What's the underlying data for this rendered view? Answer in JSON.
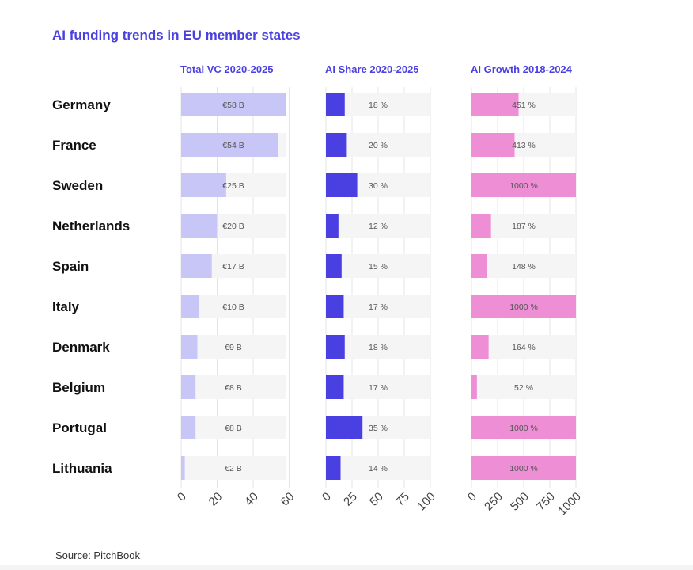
{
  "chart_data": {
    "type": "bar",
    "orientation": "horizontal",
    "title": "AI funding trends in EU member states",
    "source": "Source: PitchBook",
    "categories": [
      "Germany",
      "France",
      "Sweden",
      "Netherlands",
      "Spain",
      "Italy",
      "Denmark",
      "Belgium",
      "Portugal",
      "Lithuania"
    ],
    "panels": [
      {
        "name": "Total VC 2020-2025",
        "values": [
          58,
          54,
          25,
          20,
          17,
          10,
          9,
          8,
          8,
          2
        ],
        "value_labels": [
          "€58 B",
          "€54 B",
          "€25 B",
          "€20 B",
          "€17 B",
          "€10 B",
          "€9 B",
          "€8 B",
          "€8 B",
          "€2 B"
        ],
        "xlim": [
          0,
          58
        ],
        "ticks": [
          0,
          20,
          40,
          60
        ],
        "tick_labels": [
          "0",
          "20",
          "40",
          "60"
        ],
        "color": "#c8c6f7"
      },
      {
        "name": "AI Share 2020-2025",
        "values": [
          18,
          20,
          30,
          12,
          15,
          17,
          18,
          17,
          35,
          14
        ],
        "value_labels": [
          "18 %",
          "20 %",
          "30 %",
          "12 %",
          "15 %",
          "17 %",
          "18 %",
          "17 %",
          "35 %",
          "14 %"
        ],
        "xlim": [
          0,
          100
        ],
        "ticks": [
          0,
          25,
          50,
          75,
          100
        ],
        "tick_labels": [
          "0",
          "25",
          "50",
          "75",
          "100"
        ],
        "color": "#4a3fe0"
      },
      {
        "name": "AI Growth 2018-2024",
        "values": [
          451,
          413,
          1000,
          187,
          148,
          1000,
          164,
          52,
          1000,
          1000
        ],
        "value_labels": [
          "451 %",
          "413 %",
          "1000 %",
          "187 %",
          "148 %",
          "1000 %",
          "164 %",
          "52 %",
          "1000 %",
          "1000 %"
        ],
        "xlim": [
          0,
          1000
        ],
        "ticks": [
          0,
          250,
          500,
          750,
          1000
        ],
        "tick_labels": [
          "0",
          "250",
          "500",
          "750",
          "1000"
        ],
        "color": "#ee8fd6"
      }
    ],
    "track_color": "#f5f5f5",
    "grid_color": "#e4e4e4"
  }
}
